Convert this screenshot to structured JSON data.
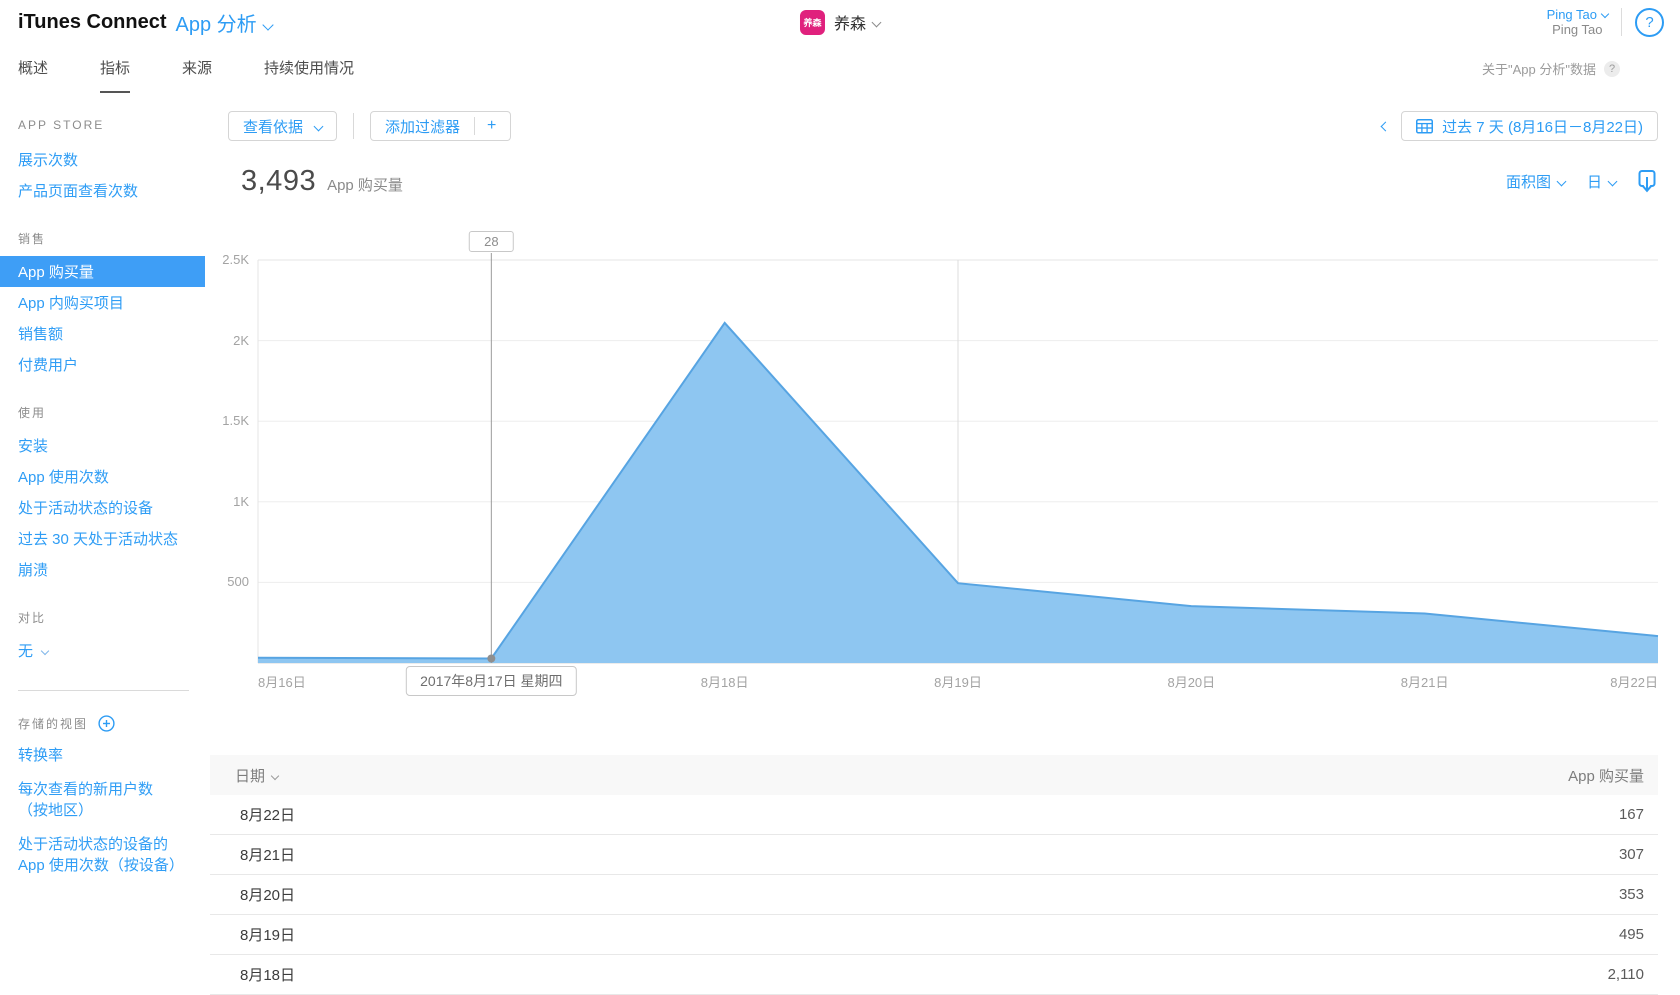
{
  "topbar": {
    "brand": "iTunes Connect",
    "app_title": "App 分析",
    "app_selector": {
      "icon_text": "养森",
      "name": "养森"
    },
    "user": {
      "name": "Ping Tao",
      "team": "Ping Tao"
    },
    "help": "?"
  },
  "tabbar": {
    "tabs": [
      {
        "label": "概述",
        "active": false
      },
      {
        "label": "指标",
        "active": true
      },
      {
        "label": "来源",
        "active": false
      },
      {
        "label": "持续使用情况",
        "active": false
      }
    ],
    "about": {
      "label": "关于\"App 分析\"数据",
      "help": "?"
    }
  },
  "sidebar": {
    "sections": [
      {
        "title": "APP STORE",
        "items": [
          {
            "label": "展示次数"
          },
          {
            "label": "产品页面查看次数"
          }
        ]
      },
      {
        "title": "销售",
        "items": [
          {
            "label": "App 购买量",
            "selected": true
          },
          {
            "label": "App 内购买项目"
          },
          {
            "label": "销售额"
          },
          {
            "label": "付费用户"
          }
        ]
      },
      {
        "title": "使用",
        "items": [
          {
            "label": "安装"
          },
          {
            "label": "App 使用次数"
          },
          {
            "label": "处于活动状态的设备"
          },
          {
            "label": "过去 30 天处于活动状态"
          },
          {
            "label": "崩溃"
          }
        ]
      },
      {
        "title": "对比",
        "items": [
          {
            "label": "无",
            "dropdown": true
          }
        ]
      }
    ],
    "saved_views": {
      "title": "存储的视图",
      "items": [
        {
          "label": "转换率"
        },
        {
          "label": "每次查看的新用户数（按地区）"
        },
        {
          "label": "处于活动状态的设备的 App 使用次数（按设备）"
        }
      ]
    }
  },
  "toolbar": {
    "view_by": "查看依据",
    "add_filter": "添加过滤器",
    "add_filter_plus": "+",
    "date_range": "过去 7 天 (8月16日－8月22日)"
  },
  "metric": {
    "value": "3,493",
    "label": "App 购买量",
    "chart_type": "面积图",
    "interval": "日"
  },
  "chart_data": {
    "type": "area",
    "title": "App 购买量",
    "x": [
      "8月16日",
      "8月17日",
      "8月18日",
      "8月19日",
      "8月20日",
      "8月21日",
      "8月22日"
    ],
    "values": [
      33,
      28,
      2110,
      495,
      353,
      307,
      167
    ],
    "total": 3493,
    "ylim": [
      0,
      2500
    ],
    "yticks": [
      {
        "label": "2.5K",
        "value": 2500
      },
      {
        "label": "2K",
        "value": 2000
      },
      {
        "label": "1.5K",
        "value": 1500
      },
      {
        "label": "1K",
        "value": 1000
      },
      {
        "label": "500",
        "value": 500
      }
    ],
    "grid": true,
    "legend": false,
    "colors": {
      "fill": "#8EC6F1",
      "line": "#57A4E2"
    },
    "highlight": {
      "x": "8月17日",
      "value": 28,
      "flag": "28",
      "date_label": "2017年8月17日 星期四"
    },
    "separator_x": "8月19日"
  },
  "table": {
    "headers": {
      "date": "日期",
      "value": "App 购买量"
    },
    "rows": [
      {
        "date": "8月22日",
        "value": "167"
      },
      {
        "date": "8月21日",
        "value": "307"
      },
      {
        "date": "8月20日",
        "value": "353"
      },
      {
        "date": "8月19日",
        "value": "495"
      },
      {
        "date": "8月18日",
        "value": "2,110"
      }
    ]
  }
}
